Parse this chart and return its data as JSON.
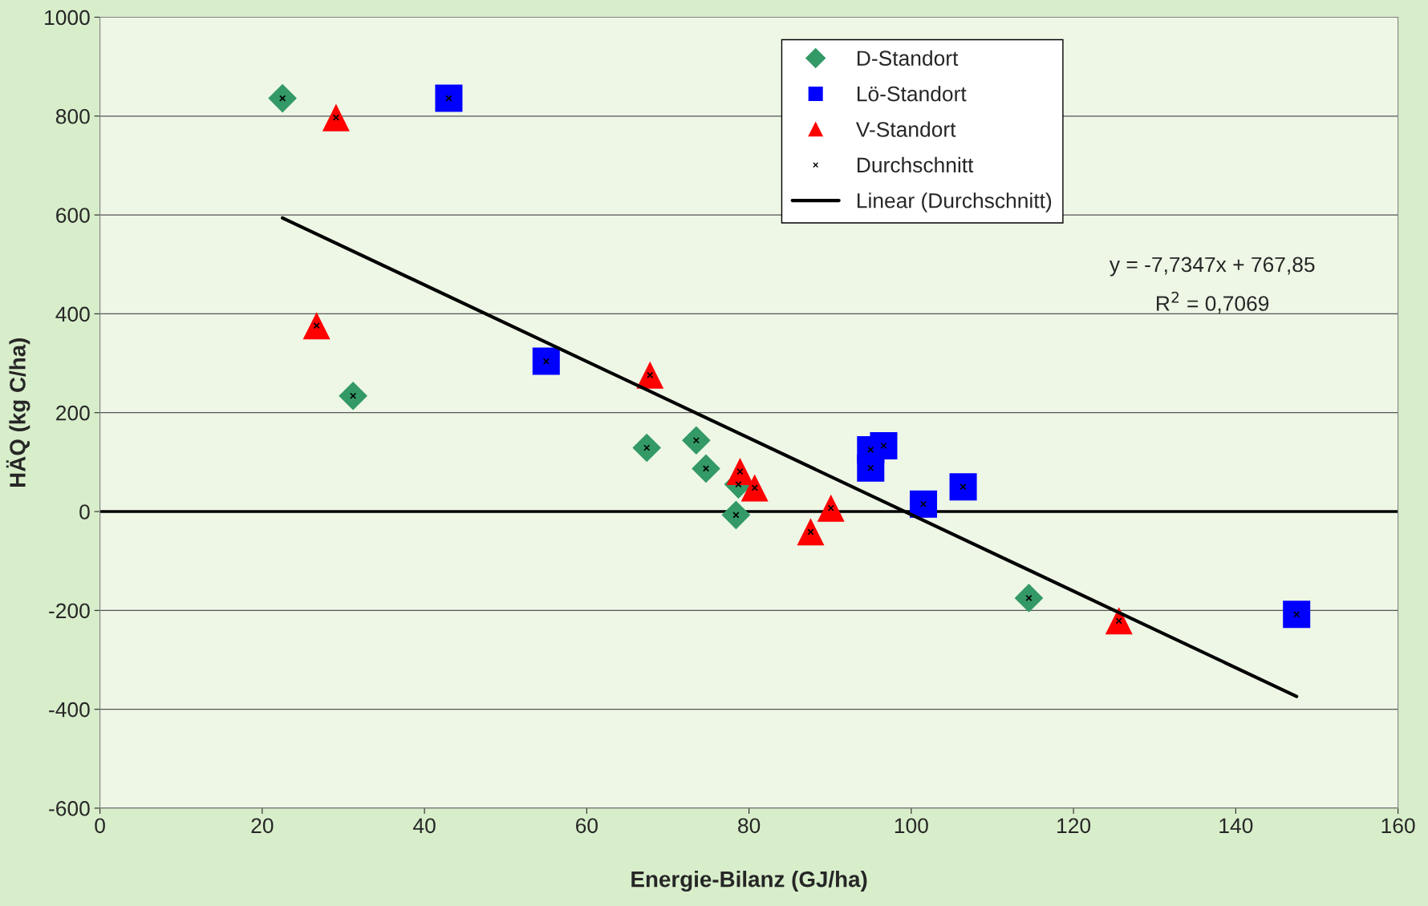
{
  "chart_data": {
    "type": "scatter",
    "xlabel": "Energie-Bilanz (GJ/ha)",
    "ylabel": "HÄQ (kg C/ha)",
    "xlim": [
      0,
      160
    ],
    "xticks": [
      0,
      20,
      40,
      60,
      80,
      100,
      120,
      140,
      160
    ],
    "ylim": [
      -600,
      1000
    ],
    "yticks": [
      -600,
      -400,
      -200,
      0,
      200,
      400,
      600,
      800,
      1000
    ],
    "grid": "y",
    "legend": "top right",
    "ref_lines": [
      {
        "axis": "y",
        "value": 0,
        "color": "#000000"
      }
    ],
    "annotations": [
      "y = -7,7347x + 767,85",
      "R$^{2}$ = 0,7069"
    ],
    "series": [
      {
        "name": "D-Standort",
        "marker": "diamond",
        "color": "#339966",
        "x": [
          22.5,
          31.2,
          67.4,
          73.5,
          74.7,
          78.7,
          78.4,
          114.5
        ],
        "values": [
          836,
          234,
          129,
          144,
          87,
          55,
          -7,
          -175
        ]
      },
      {
        "name": "Lö-Standort",
        "marker": "square",
        "color": "#0000ff",
        "x": [
          43.0,
          55.0,
          95.0,
          95.0,
          96.6,
          101.5,
          106.4,
          147.5
        ],
        "values": [
          836,
          304,
          125,
          88,
          133,
          15,
          50,
          -208
        ]
      },
      {
        "name": "V-Standort",
        "marker": "triangle",
        "color": "#ff0000",
        "x": [
          29.1,
          26.7,
          67.8,
          78.9,
          80.7,
          87.6,
          90.1,
          125.6
        ],
        "values": [
          797,
          376,
          276,
          81,
          48,
          -41,
          7,
          -221
        ]
      },
      {
        "name": "Durchschnitt",
        "marker": "cross",
        "color": "#000000",
        "x": [
          22.5,
          26.7,
          29.1,
          31.2,
          43.0,
          55.0,
          67.4,
          67.8,
          73.5,
          74.7,
          78.4,
          78.7,
          78.9,
          80.7,
          87.6,
          90.1,
          95.0,
          95.0,
          96.6,
          101.5,
          106.4,
          114.5,
          125.6,
          147.5
        ],
        "values": [
          836,
          376,
          797,
          234,
          836,
          304,
          129,
          276,
          144,
          87,
          -7,
          55,
          81,
          48,
          -41,
          7,
          125,
          88,
          133,
          15,
          50,
          -175,
          -221,
          -208
        ]
      },
      {
        "name": "Linear (Durchschnitt)",
        "type": "line",
        "marker": "none",
        "color": "#000000",
        "x": [
          22.5,
          147.5
        ],
        "values": [
          594,
          -374
        ]
      }
    ]
  }
}
